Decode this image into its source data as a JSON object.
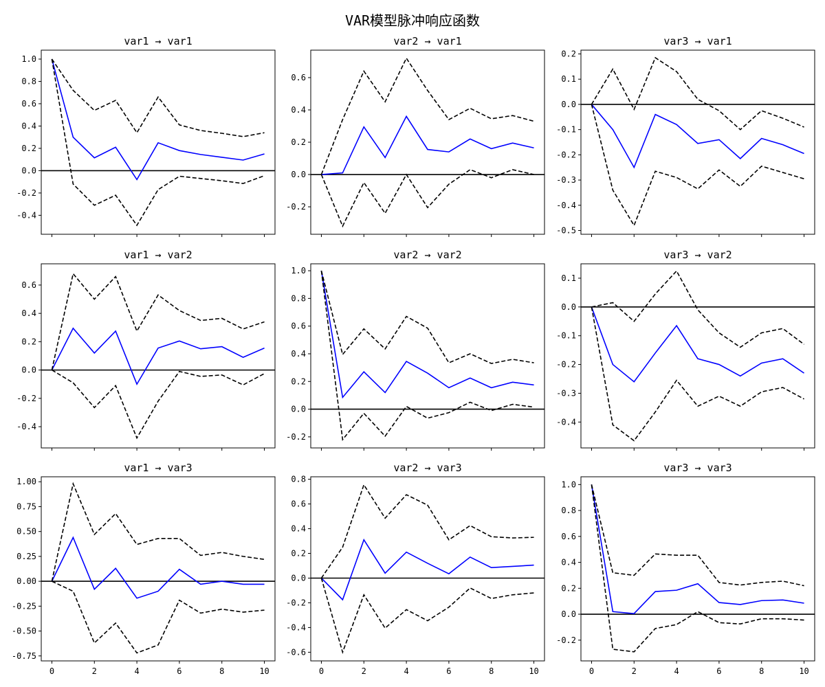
{
  "figure": {
    "title": "VAR模型脉冲响应函数"
  },
  "chart_data": [
    {
      "type": "line",
      "title": "var1 → var1",
      "x": [
        0,
        1,
        2,
        3,
        4,
        5,
        6,
        7,
        8,
        9,
        10
      ],
      "ylim": [
        -0.57,
        1.08
      ],
      "yticks": [
        1.0,
        0.8,
        0.6,
        0.4,
        0.2,
        0.0,
        -0.2,
        -0.4
      ],
      "ytick_labels": [
        "1.0",
        "0.8",
        "0.6",
        "0.4",
        "0.2",
        "0.0",
        "-0.2",
        "-0.4"
      ],
      "series": [
        {
          "role": "irf",
          "values": [
            1.0,
            0.3,
            0.115,
            0.21,
            -0.08,
            0.25,
            0.18,
            0.145,
            0.12,
            0.095,
            0.15
          ]
        },
        {
          "role": "upper",
          "values": [
            1.0,
            0.72,
            0.54,
            0.63,
            0.34,
            0.66,
            0.41,
            0.36,
            0.335,
            0.305,
            0.34
          ]
        },
        {
          "role": "lower",
          "values": [
            1.0,
            -0.12,
            -0.31,
            -0.22,
            -0.49,
            -0.17,
            -0.05,
            -0.07,
            -0.09,
            -0.115,
            -0.045
          ]
        }
      ]
    },
    {
      "type": "line",
      "title": "var2 → var1",
      "x": [
        0,
        1,
        2,
        3,
        4,
        5,
        6,
        7,
        8,
        9,
        10
      ],
      "ylim": [
        -0.37,
        0.77
      ],
      "yticks": [
        0.6,
        0.4,
        0.2,
        0.0,
        -0.2
      ],
      "ytick_labels": [
        "0.6",
        "0.4",
        "0.2",
        "0.0",
        "-0.2"
      ],
      "series": [
        {
          "role": "irf",
          "values": [
            0.0,
            0.01,
            0.295,
            0.105,
            0.36,
            0.155,
            0.14,
            0.22,
            0.16,
            0.195,
            0.165
          ]
        },
        {
          "role": "upper",
          "values": [
            0.0,
            0.34,
            0.64,
            0.45,
            0.72,
            0.52,
            0.34,
            0.41,
            0.345,
            0.365,
            0.33
          ]
        },
        {
          "role": "lower",
          "values": [
            0.0,
            -0.32,
            -0.05,
            -0.24,
            0.0,
            -0.205,
            -0.06,
            0.03,
            -0.02,
            0.03,
            0.0
          ]
        }
      ]
    },
    {
      "type": "line",
      "title": "var3 → var1",
      "x": [
        0,
        1,
        2,
        3,
        4,
        5,
        6,
        7,
        8,
        9,
        10
      ],
      "ylim": [
        -0.515,
        0.215
      ],
      "yticks": [
        0.2,
        0.1,
        0.0,
        -0.1,
        -0.2,
        -0.3,
        -0.4,
        -0.5
      ],
      "ytick_labels": [
        "0.2",
        "0.1",
        "0.0",
        "-0.1",
        "-0.2",
        "-0.3",
        "-0.4",
        "-0.5"
      ],
      "series": [
        {
          "role": "irf",
          "values": [
            0.0,
            -0.1,
            -0.25,
            -0.04,
            -0.08,
            -0.155,
            -0.14,
            -0.215,
            -0.135,
            -0.16,
            -0.195
          ]
        },
        {
          "role": "upper",
          "values": [
            0.0,
            0.14,
            -0.02,
            0.185,
            0.13,
            0.02,
            -0.025,
            -0.1,
            -0.025,
            -0.055,
            -0.09
          ]
        },
        {
          "role": "lower",
          "values": [
            0.0,
            -0.34,
            -0.48,
            -0.265,
            -0.29,
            -0.335,
            -0.26,
            -0.325,
            -0.245,
            -0.27,
            -0.295
          ]
        }
      ]
    },
    {
      "type": "line",
      "title": "var1 → var2",
      "x": [
        0,
        1,
        2,
        3,
        4,
        5,
        6,
        7,
        8,
        9,
        10
      ],
      "ylim": [
        -0.55,
        0.75
      ],
      "yticks": [
        0.6,
        0.4,
        0.2,
        0.0,
        -0.2,
        -0.4
      ],
      "ytick_labels": [
        "0.6",
        "0.4",
        "0.2",
        "0.0",
        "-0.2",
        "-0.4"
      ],
      "series": [
        {
          "role": "irf",
          "values": [
            0.0,
            0.295,
            0.12,
            0.275,
            -0.1,
            0.155,
            0.205,
            0.15,
            0.165,
            0.09,
            0.155
          ]
        },
        {
          "role": "upper",
          "values": [
            0.0,
            0.68,
            0.5,
            0.66,
            0.275,
            0.53,
            0.42,
            0.35,
            0.365,
            0.29,
            0.34
          ]
        },
        {
          "role": "lower",
          "values": [
            0.0,
            -0.09,
            -0.265,
            -0.11,
            -0.48,
            -0.22,
            -0.01,
            -0.045,
            -0.035,
            -0.105,
            -0.025
          ]
        }
      ]
    },
    {
      "type": "line",
      "title": "var2 → var2",
      "x": [
        0,
        1,
        2,
        3,
        4,
        5,
        6,
        7,
        8,
        9,
        10
      ],
      "ylim": [
        -0.28,
        1.05
      ],
      "yticks": [
        1.0,
        0.8,
        0.6,
        0.4,
        0.2,
        0.0,
        -0.2
      ],
      "ytick_labels": [
        "1.0",
        "0.8",
        "0.6",
        "0.4",
        "0.2",
        "0.0",
        "-0.2"
      ],
      "series": [
        {
          "role": "irf",
          "values": [
            1.0,
            0.085,
            0.27,
            0.12,
            0.345,
            0.26,
            0.155,
            0.225,
            0.155,
            0.195,
            0.175
          ]
        },
        {
          "role": "upper",
          "values": [
            1.0,
            0.395,
            0.58,
            0.435,
            0.67,
            0.585,
            0.335,
            0.4,
            0.33,
            0.36,
            0.335
          ]
        },
        {
          "role": "lower",
          "values": [
            1.0,
            -0.22,
            -0.03,
            -0.195,
            0.02,
            -0.065,
            -0.025,
            0.05,
            -0.01,
            0.035,
            0.015
          ]
        }
      ]
    },
    {
      "type": "line",
      "title": "var3 → var2",
      "x": [
        0,
        1,
        2,
        3,
        4,
        5,
        6,
        7,
        8,
        9,
        10
      ],
      "ylim": [
        -0.49,
        0.15
      ],
      "yticks": [
        0.1,
        0.0,
        -0.1,
        -0.2,
        -0.3,
        -0.4
      ],
      "ytick_labels": [
        "0.1",
        "0.0",
        "-0.1",
        "-0.2",
        "-0.3",
        "-0.4"
      ],
      "series": [
        {
          "role": "irf",
          "values": [
            0.0,
            -0.2,
            -0.26,
            -0.16,
            -0.065,
            -0.18,
            -0.2,
            -0.24,
            -0.195,
            -0.18,
            -0.23
          ]
        },
        {
          "role": "upper",
          "values": [
            0.0,
            0.015,
            -0.05,
            0.045,
            0.125,
            -0.01,
            -0.09,
            -0.14,
            -0.09,
            -0.075,
            -0.13
          ]
        },
        {
          "role": "lower",
          "values": [
            0.0,
            -0.41,
            -0.465,
            -0.365,
            -0.255,
            -0.345,
            -0.31,
            -0.345,
            -0.295,
            -0.28,
            -0.32
          ]
        }
      ]
    },
    {
      "type": "line",
      "title": "var1 → var3",
      "x": [
        0,
        1,
        2,
        3,
        4,
        5,
        6,
        7,
        8,
        9,
        10
      ],
      "ylim": [
        -0.8,
        1.05
      ],
      "yticks": [
        1.0,
        0.75,
        0.5,
        0.25,
        0.0,
        -0.25,
        -0.5,
        -0.75
      ],
      "ytick_labels": [
        "1.00",
        "0.75",
        "0.50",
        "0.25",
        "0.00",
        "-0.25",
        "-0.50",
        "-0.75"
      ],
      "series": [
        {
          "role": "irf",
          "values": [
            0.0,
            0.44,
            -0.08,
            0.13,
            -0.17,
            -0.1,
            0.12,
            -0.03,
            0.0,
            -0.03,
            -0.03
          ]
        },
        {
          "role": "upper",
          "values": [
            0.0,
            0.98,
            0.47,
            0.68,
            0.37,
            0.43,
            0.43,
            0.26,
            0.29,
            0.25,
            0.22
          ]
        },
        {
          "role": "lower",
          "values": [
            0.0,
            -0.1,
            -0.62,
            -0.42,
            -0.72,
            -0.64,
            -0.19,
            -0.32,
            -0.28,
            -0.31,
            -0.29
          ]
        }
      ]
    },
    {
      "type": "line",
      "title": "var2 → var3",
      "x": [
        0,
        1,
        2,
        3,
        4,
        5,
        6,
        7,
        8,
        9,
        10
      ],
      "ylim": [
        -0.67,
        0.82
      ],
      "yticks": [
        0.8,
        0.6,
        0.4,
        0.2,
        0.0,
        -0.2,
        -0.4,
        -0.6
      ],
      "ytick_labels": [
        "0.8",
        "0.6",
        "0.4",
        "0.2",
        "0.0",
        "-0.2",
        "-0.4",
        "-0.6"
      ],
      "series": [
        {
          "role": "irf",
          "values": [
            0.0,
            -0.175,
            0.31,
            0.04,
            0.21,
            0.12,
            0.035,
            0.17,
            0.085,
            0.095,
            0.105
          ]
        },
        {
          "role": "upper",
          "values": [
            0.0,
            0.25,
            0.755,
            0.485,
            0.675,
            0.59,
            0.31,
            0.425,
            0.335,
            0.325,
            0.33
          ]
        },
        {
          "role": "lower",
          "values": [
            0.0,
            -0.6,
            -0.135,
            -0.405,
            -0.255,
            -0.345,
            -0.235,
            -0.08,
            -0.165,
            -0.135,
            -0.12
          ]
        }
      ]
    },
    {
      "type": "line",
      "title": "var3 → var3",
      "x": [
        0,
        1,
        2,
        3,
        4,
        5,
        6,
        7,
        8,
        9,
        10
      ],
      "ylim": [
        -0.36,
        1.06
      ],
      "yticks": [
        1.0,
        0.8,
        0.6,
        0.4,
        0.2,
        0.0,
        -0.2
      ],
      "ytick_labels": [
        "1.0",
        "0.8",
        "0.6",
        "0.4",
        "0.2",
        "0.0",
        "-0.2"
      ],
      "series": [
        {
          "role": "irf",
          "values": [
            1.0,
            0.02,
            0.005,
            0.175,
            0.185,
            0.235,
            0.09,
            0.075,
            0.105,
            0.11,
            0.085
          ]
        },
        {
          "role": "upper",
          "values": [
            1.0,
            0.32,
            0.3,
            0.465,
            0.455,
            0.455,
            0.245,
            0.225,
            0.245,
            0.255,
            0.22
          ]
        },
        {
          "role": "lower",
          "values": [
            1.0,
            -0.27,
            -0.29,
            -0.11,
            -0.08,
            0.02,
            -0.065,
            -0.075,
            -0.035,
            -0.035,
            -0.045
          ]
        }
      ]
    }
  ],
  "shared_x": {
    "xlim": [
      -0.5,
      10.5
    ],
    "xticks": [
      0,
      2,
      4,
      6,
      8,
      10
    ],
    "xtick_labels": [
      "0",
      "2",
      "4",
      "6",
      "8",
      "10"
    ]
  },
  "colors": {
    "irf": "#0000ff",
    "bands": "#000000",
    "zero_line": "#000000",
    "axes": "#000000"
  }
}
